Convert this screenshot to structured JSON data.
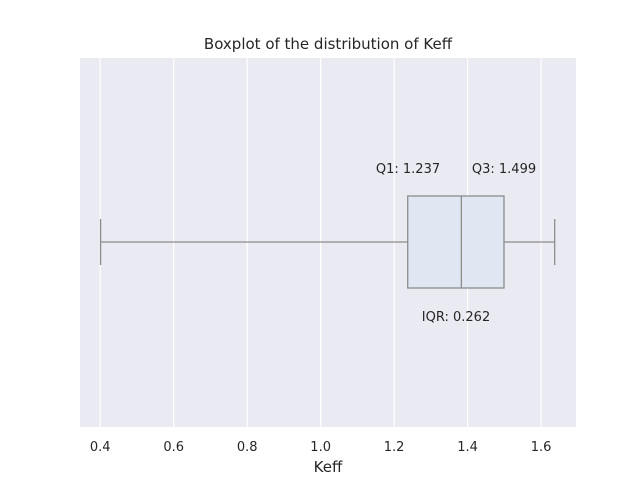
{
  "chart_data": {
    "type": "box",
    "title": "Boxplot of the distribution of Keff",
    "xlabel": "Keff",
    "ylabel": "",
    "orientation": "horizontal",
    "xlim": [
      0.345,
      1.695
    ],
    "xticks": [
      0.4,
      0.6,
      0.8,
      1.0,
      1.2,
      1.4,
      1.6
    ],
    "xtick_labels": [
      "0.4",
      "0.6",
      "0.8",
      "1.0",
      "1.2",
      "1.4",
      "1.6"
    ],
    "grid": true,
    "box": {
      "whisker_low": 0.401,
      "q1": 1.237,
      "median": 1.383,
      "q3": 1.499,
      "whisker_high": 1.637
    },
    "annotations": {
      "q1": "Q1: 1.237",
      "q3": "Q3: 1.499",
      "iqr": "IQR: 0.262"
    },
    "colors": {
      "plot_background": "#eaeaf2",
      "grid": "#ffffff",
      "box_fill": "#dfe7f2",
      "box_line": "#8c8c8c",
      "text": "#262626"
    }
  }
}
